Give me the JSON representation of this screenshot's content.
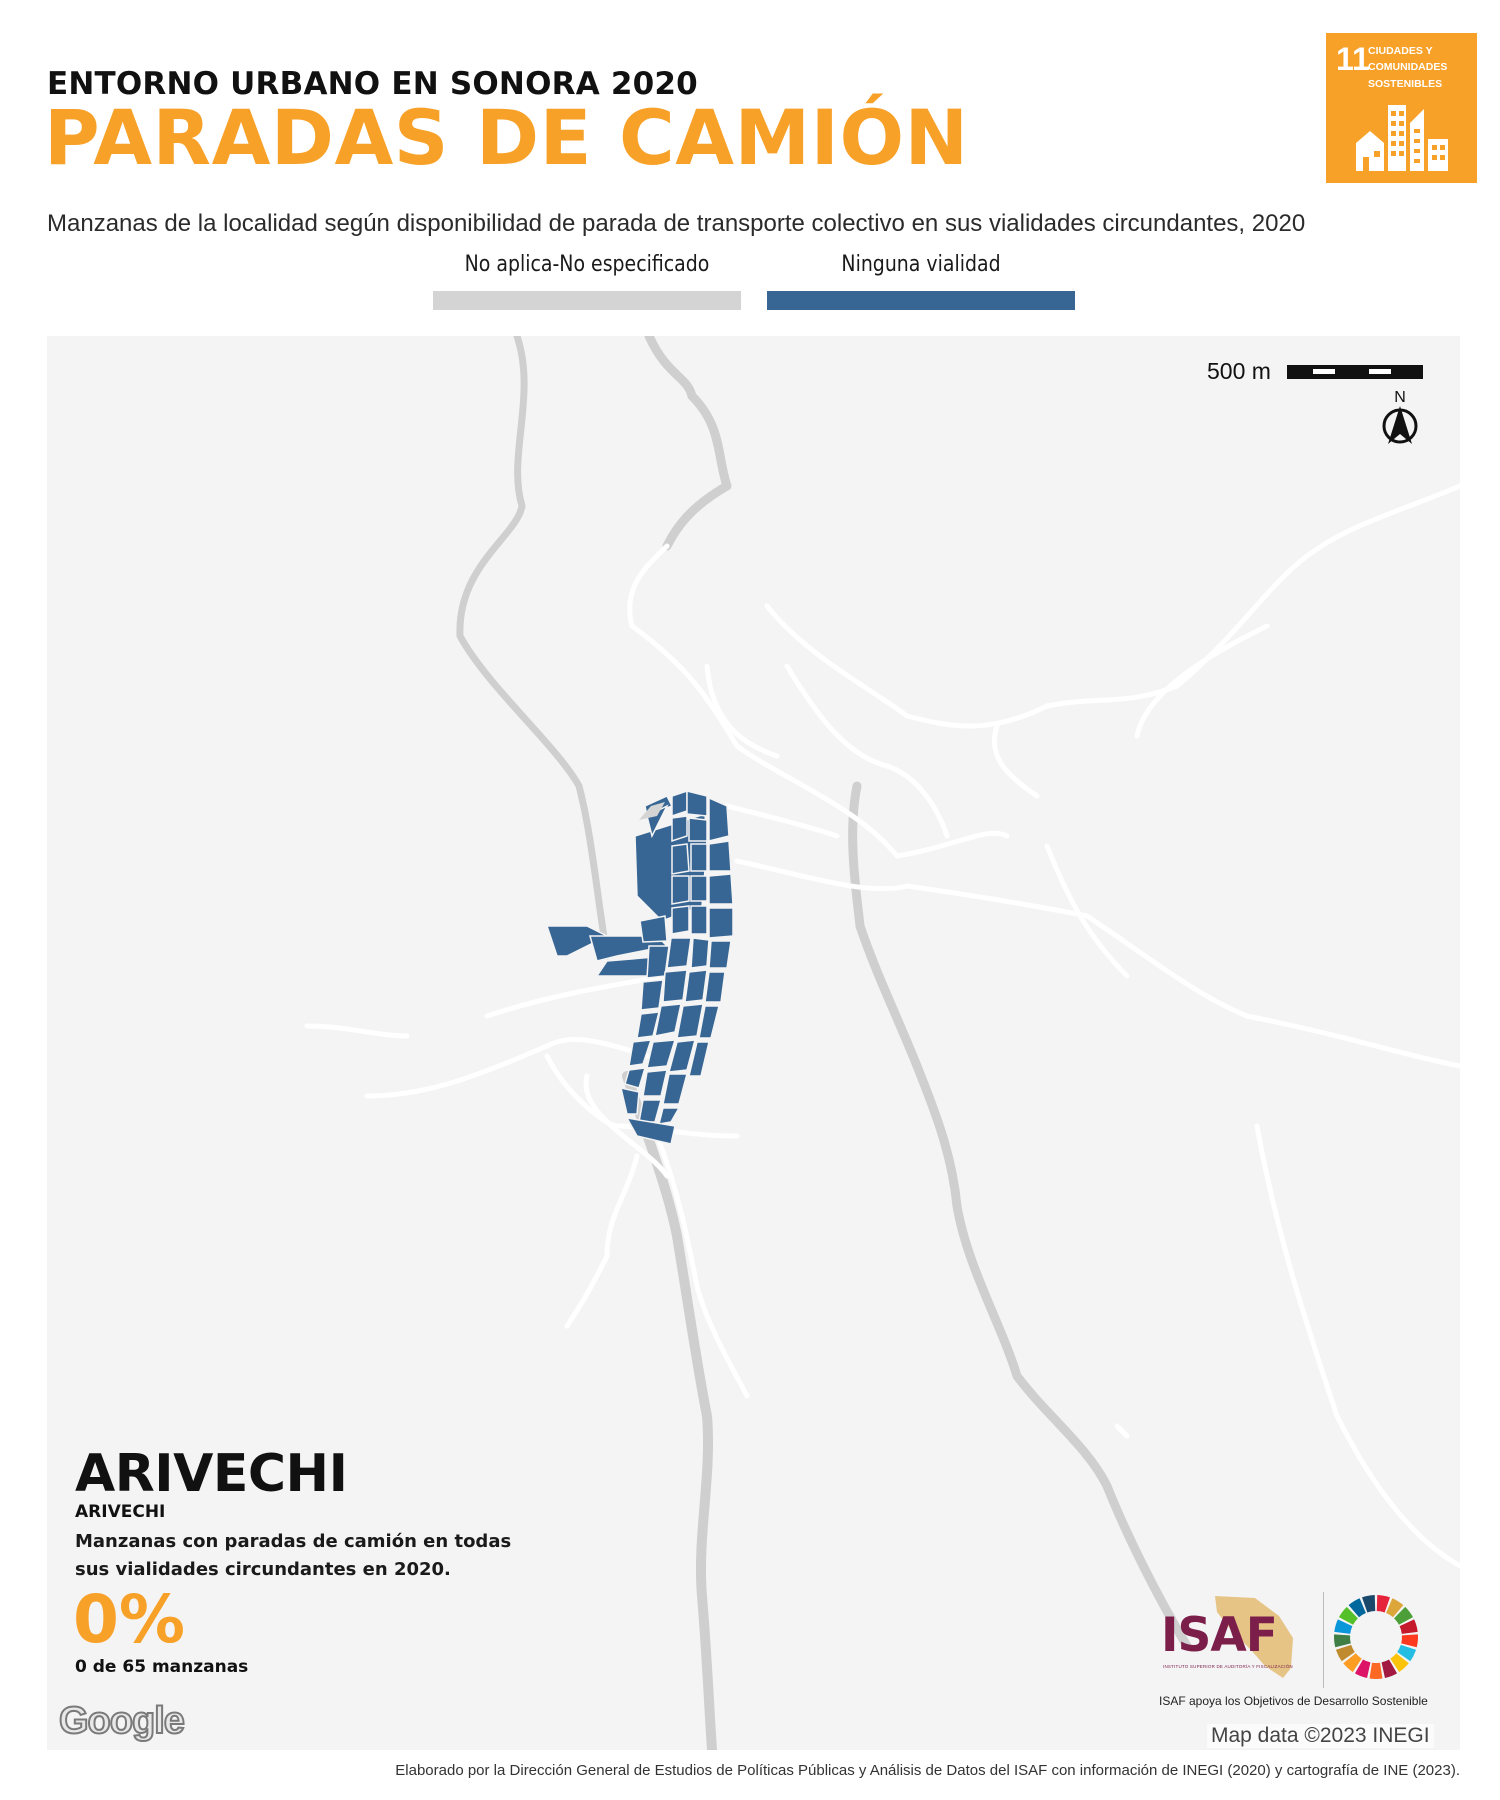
{
  "header": {
    "kicker": "ENTORNO URBANO EN SONORA 2020",
    "title": "PARADAS DE CAMIÓN",
    "subtitle": "Manzanas de la localidad según disponibilidad de parada de transporte colectivo en sus vialidades circundantes, 2020"
  },
  "ods_badge": {
    "number": "11",
    "line1": "CIUDADES Y",
    "line2": "COMUNIDADES",
    "line3": "SOSTENIBLES",
    "color": "#F7A128",
    "icon": "city-buildings-icon"
  },
  "legend": [
    {
      "label": "No aplica-No especificado",
      "color": "#D4D4D4"
    },
    {
      "label": "Ninguna vialidad",
      "color": "#386694"
    }
  ],
  "map": {
    "scale_label": "500 m",
    "north_label": "N",
    "block_color": "#386694",
    "road_color": "#ffffff",
    "river_color": "#cfcfcf",
    "background": "#f4f4f4",
    "attribution_logo": "Google",
    "map_data_credit": "Map data ©2023 INEGI"
  },
  "location": {
    "name": "ARIVECHI",
    "municipality": "ARIVECHI",
    "description": "Manzanas con paradas de camión en todas sus vialidades circundantes en 2020.",
    "percentage": "0%",
    "count_text": "0 de 65 manzanas"
  },
  "logos": {
    "isaf_text": "ISAF",
    "isaf_subtitle": "INSTITUTO SUPERIOR DE AUDITORÍA Y FISCALIZACIÓN",
    "isaf_caption": "ISAF apoya los Objetivos de Desarrollo Sostenible",
    "isaf_color": "#7b1e4a",
    "sdg_colors": [
      "#E5243B",
      "#DDA63A",
      "#4C9F38",
      "#C5192D",
      "#FF3A21",
      "#26BDE2",
      "#FCC30B",
      "#A21942",
      "#FD6925",
      "#DD1367",
      "#FD9D24",
      "#BF8B2E",
      "#3F7E44",
      "#0A97D9",
      "#56C02B",
      "#00689D",
      "#19486A"
    ]
  },
  "footer": {
    "note": "Elaborado por la Dirección General de Estudios de Políticas Públicas y Análisis de Datos del ISAF con información de INEGI (2020) y cartografía de INE (2023)."
  }
}
